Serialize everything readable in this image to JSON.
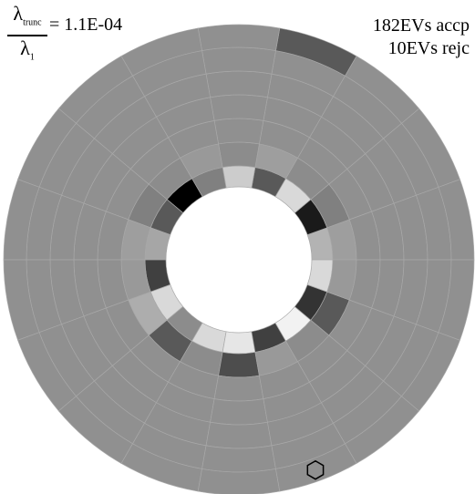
{
  "header": {
    "lambda_symbol": "λ",
    "trunc_subscript": "trunc",
    "one_subscript": "1",
    "ratio_value": "= 1.1E-04",
    "accepted": "182EVs accp",
    "rejected": "10EVs rejc"
  },
  "detector": {
    "segments": 18,
    "rings": 7,
    "outer_color": "#909090",
    "grid_color": "#a8a8a8",
    "inner_ring_values": [
      0.7,
      0.3,
      0.85,
      0.35,
      0.8,
      0.5,
      0.85,
      0.35,
      0.65,
      0.25,
      0.85,
      0.55,
      0.85,
      0.9,
      0.25,
      0.95,
      0.2,
      0.85
    ],
    "second_ring_values": [
      0.62,
      0.5,
      0.55,
      0.62,
      0.55,
      0.6,
      0.55,
      0.5,
      0.62,
      0.6,
      0.68,
      0.35,
      0.55,
      0.3,
      0.6,
      0.55,
      0.35,
      0.6
    ],
    "special_cells": [
      {
        "ring": 0,
        "segment": 6,
        "value": 0.0
      },
      {
        "ring": 0,
        "segment": 1,
        "value": 0.1
      }
    ],
    "marker_cell": {
      "ring": 6,
      "segment": 3,
      "value": 0.35,
      "marker": "hexagon"
    },
    "marker_icon": "hexagon-marker"
  }
}
